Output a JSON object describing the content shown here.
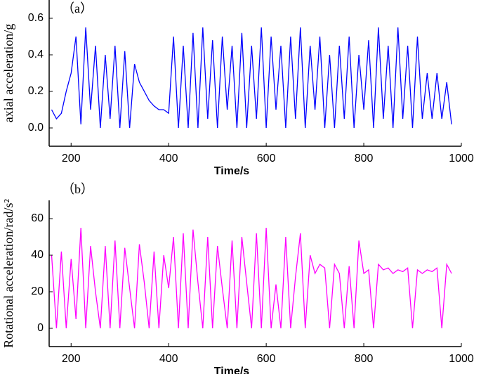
{
  "chart_data": [
    {
      "type": "line",
      "annotation": "（a）",
      "xlabel": "Time/s",
      "ylabel": "axial acceleration/g",
      "color": "#0000ff",
      "xlim": [
        155,
        1000
      ],
      "ylim": [
        -0.1,
        0.7
      ],
      "xticks": [
        200,
        400,
        600,
        800,
        1000
      ],
      "yticks": [
        {
          "value": 0,
          "label": "0.0"
        },
        0.2,
        0.4,
        0.6
      ],
      "x": [
        160,
        170,
        180,
        190,
        200,
        210,
        220,
        230,
        240,
        250,
        260,
        270,
        280,
        290,
        300,
        310,
        320,
        330,
        340,
        350,
        360,
        370,
        380,
        390,
        400,
        410,
        420,
        430,
        440,
        450,
        460,
        470,
        480,
        490,
        500,
        510,
        520,
        530,
        540,
        550,
        560,
        570,
        580,
        590,
        600,
        610,
        620,
        630,
        640,
        650,
        660,
        670,
        680,
        690,
        700,
        710,
        720,
        730,
        740,
        750,
        760,
        770,
        780,
        790,
        800,
        810,
        820,
        830,
        840,
        850,
        860,
        870,
        880,
        890,
        900,
        910,
        920,
        930,
        940,
        950,
        960,
        970,
        980
      ],
      "values": [
        0.1,
        0.05,
        0.08,
        0.2,
        0.3,
        0.5,
        0.02,
        0.55,
        0.1,
        0.45,
        0.0,
        0.4,
        0.05,
        0.45,
        0.0,
        0.42,
        0.0,
        0.35,
        0.25,
        0.2,
        0.15,
        0.12,
        0.1,
        0.1,
        0.08,
        0.5,
        0.0,
        0.45,
        0.0,
        0.52,
        0.0,
        0.55,
        0.05,
        0.48,
        0.0,
        0.5,
        0.1,
        0.45,
        0.0,
        0.52,
        0.0,
        0.45,
        0.05,
        0.55,
        0.0,
        0.5,
        0.1,
        0.45,
        0.0,
        0.5,
        0.05,
        0.55,
        0.0,
        0.45,
        0.1,
        0.5,
        0.0,
        0.4,
        0.0,
        0.45,
        0.05,
        0.5,
        0.0,
        0.4,
        0.1,
        0.48,
        0.0,
        0.55,
        0.05,
        0.45,
        0.0,
        0.55,
        0.05,
        0.45,
        0.0,
        0.5,
        0.05,
        0.3,
        0.05,
        0.3,
        0.05,
        0.25,
        0.02
      ]
    },
    {
      "type": "line",
      "annotation": "（b）",
      "xlabel": "Time/s",
      "ylabel": "Rotational acceleration/rad/s²",
      "color": "#ff00ff",
      "xlim": [
        155,
        1000
      ],
      "ylim": [
        -10,
        70
      ],
      "xticks": [
        200,
        400,
        600,
        800,
        1000
      ],
      "yticks": [
        0,
        20,
        40,
        60
      ],
      "x": [
        160,
        170,
        180,
        190,
        200,
        210,
        220,
        230,
        240,
        250,
        260,
        270,
        280,
        290,
        300,
        310,
        320,
        330,
        340,
        350,
        360,
        370,
        380,
        390,
        400,
        410,
        420,
        430,
        440,
        450,
        460,
        470,
        480,
        490,
        500,
        510,
        520,
        530,
        540,
        550,
        560,
        570,
        580,
        590,
        600,
        610,
        620,
        630,
        640,
        650,
        660,
        670,
        680,
        690,
        700,
        710,
        720,
        730,
        740,
        750,
        760,
        770,
        780,
        790,
        800,
        810,
        820,
        830,
        840,
        850,
        860,
        870,
        880,
        890,
        900,
        910,
        920,
        930,
        940,
        950,
        960,
        970,
        980
      ],
      "values": [
        40,
        0,
        42,
        0,
        38,
        5,
        55,
        0,
        45,
        20,
        0,
        45,
        0,
        48,
        0,
        44,
        22,
        0,
        46,
        25,
        0,
        42,
        0,
        40,
        22,
        50,
        0,
        52,
        0,
        54,
        25,
        0,
        50,
        0,
        45,
        22,
        0,
        48,
        0,
        50,
        25,
        0,
        52,
        0,
        55,
        0,
        24,
        0,
        50,
        0,
        28,
        52,
        0,
        40,
        30,
        35,
        33,
        0,
        35,
        30,
        0,
        34,
        0,
        48,
        30,
        32,
        0,
        35,
        32,
        33,
        30,
        32,
        31,
        33,
        0,
        32,
        30,
        32,
        31,
        33,
        0,
        35,
        30
      ]
    }
  ]
}
